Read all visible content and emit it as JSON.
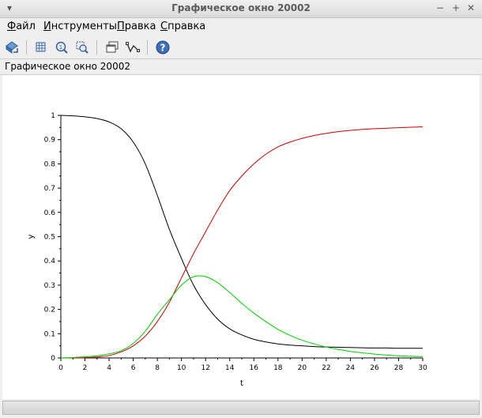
{
  "window": {
    "title": "Графическое окно 20002"
  },
  "menu": {
    "items": [
      {
        "first": "Ф",
        "rest": "айл"
      },
      {
        "first": "И",
        "rest": "нструменты"
      },
      {
        "first": "П",
        "rest": "равка"
      },
      {
        "first": "С",
        "rest": "правка"
      }
    ]
  },
  "caption": "Графическое окно 20002",
  "icons": [
    "rotate-icon",
    "zoom-grid-icon",
    "zoom-in-icon",
    "zoom-area-icon",
    "window-icon",
    "datatip-icon",
    "help-icon"
  ],
  "colors": {
    "black": "#000000",
    "red": "#cc0000",
    "green": "#00cc00"
  },
  "chart_data": {
    "type": "line",
    "xlabel": "t",
    "ylabel": "y",
    "xlim": [
      0,
      30
    ],
    "ylim": [
      0,
      1
    ],
    "xticks": [
      "0",
      "2",
      "4",
      "6",
      "8",
      "10",
      "12",
      "14",
      "16",
      "18",
      "20",
      "22",
      "24",
      "26",
      "28",
      "30"
    ],
    "yticks": [
      "0",
      "0.1",
      "0.2",
      "0.3",
      "0.4",
      "0.5",
      "0.6",
      "0.7",
      "0.8",
      "0.9",
      "1"
    ],
    "x": [
      0,
      1,
      2,
      3,
      4,
      5,
      6,
      7,
      8,
      9,
      10,
      11,
      12,
      13,
      14,
      15,
      16,
      17,
      18,
      19,
      20,
      21,
      22,
      23,
      24,
      25,
      26,
      27,
      28,
      29,
      30
    ],
    "series": [
      {
        "color": "#000000",
        "values": [
          1.0,
          0.998,
          0.994,
          0.987,
          0.973,
          0.945,
          0.89,
          0.8,
          0.67,
          0.53,
          0.41,
          0.3,
          0.22,
          0.16,
          0.12,
          0.095,
          0.077,
          0.066,
          0.058,
          0.053,
          0.05,
          0.047,
          0.045,
          0.044,
          0.043,
          0.042,
          0.041,
          0.041,
          0.04,
          0.04,
          0.04
        ]
      },
      {
        "color": "#cc0000",
        "values": [
          0.0,
          0.0004,
          0.0013,
          0.004,
          0.01,
          0.025,
          0.05,
          0.09,
          0.15,
          0.23,
          0.33,
          0.43,
          0.52,
          0.61,
          0.69,
          0.75,
          0.8,
          0.84,
          0.87,
          0.89,
          0.905,
          0.917,
          0.926,
          0.933,
          0.938,
          0.942,
          0.945,
          0.947,
          0.949,
          0.951,
          0.953
        ]
      },
      {
        "color": "#00cc00",
        "values": [
          0.0,
          0.0016,
          0.0047,
          0.009,
          0.017,
          0.03,
          0.06,
          0.11,
          0.18,
          0.24,
          0.3,
          0.335,
          0.335,
          0.31,
          0.27,
          0.225,
          0.185,
          0.15,
          0.118,
          0.093,
          0.073,
          0.058,
          0.045,
          0.035,
          0.027,
          0.021,
          0.016,
          0.012,
          0.009,
          0.007,
          0.006
        ]
      }
    ]
  }
}
